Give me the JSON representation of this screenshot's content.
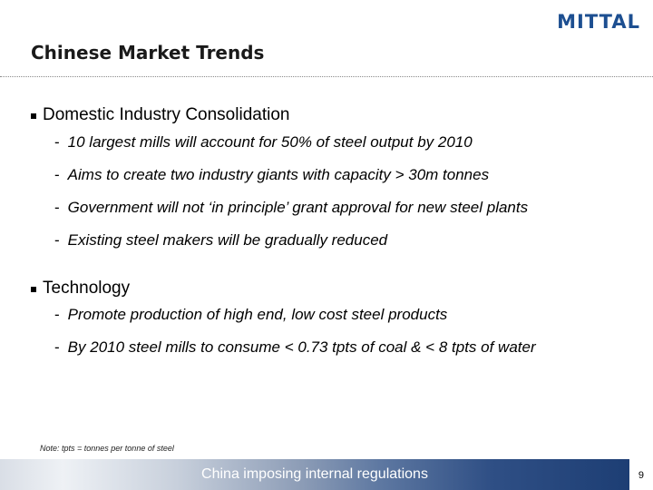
{
  "brand": {
    "logo_text": "MITTAL"
  },
  "slide": {
    "title": "Chinese Market Trends",
    "sections": [
      {
        "heading": "Domestic Industry Consolidation",
        "items": [
          "10 largest mills will account for 50% of steel output by 2010",
          "Aims to create two industry giants with capacity > 30m tonnes",
          "Government will not ‘in principle’ grant approval for new steel plants",
          "Existing steel makers will be gradually reduced"
        ]
      },
      {
        "heading": "Technology",
        "items": [
          "Promote production of high end, low cost steel products",
          "By 2010 steel mills to consume < 0.73 tpts of coal & < 8 tpts of water"
        ]
      }
    ],
    "note": "Note: tpts = tonnes per tonne of steel",
    "footer": "China imposing internal regulations",
    "page_number": "9"
  },
  "colors": {
    "brand_blue": "#1d4f91",
    "footer_dark": "#1d3e74"
  }
}
